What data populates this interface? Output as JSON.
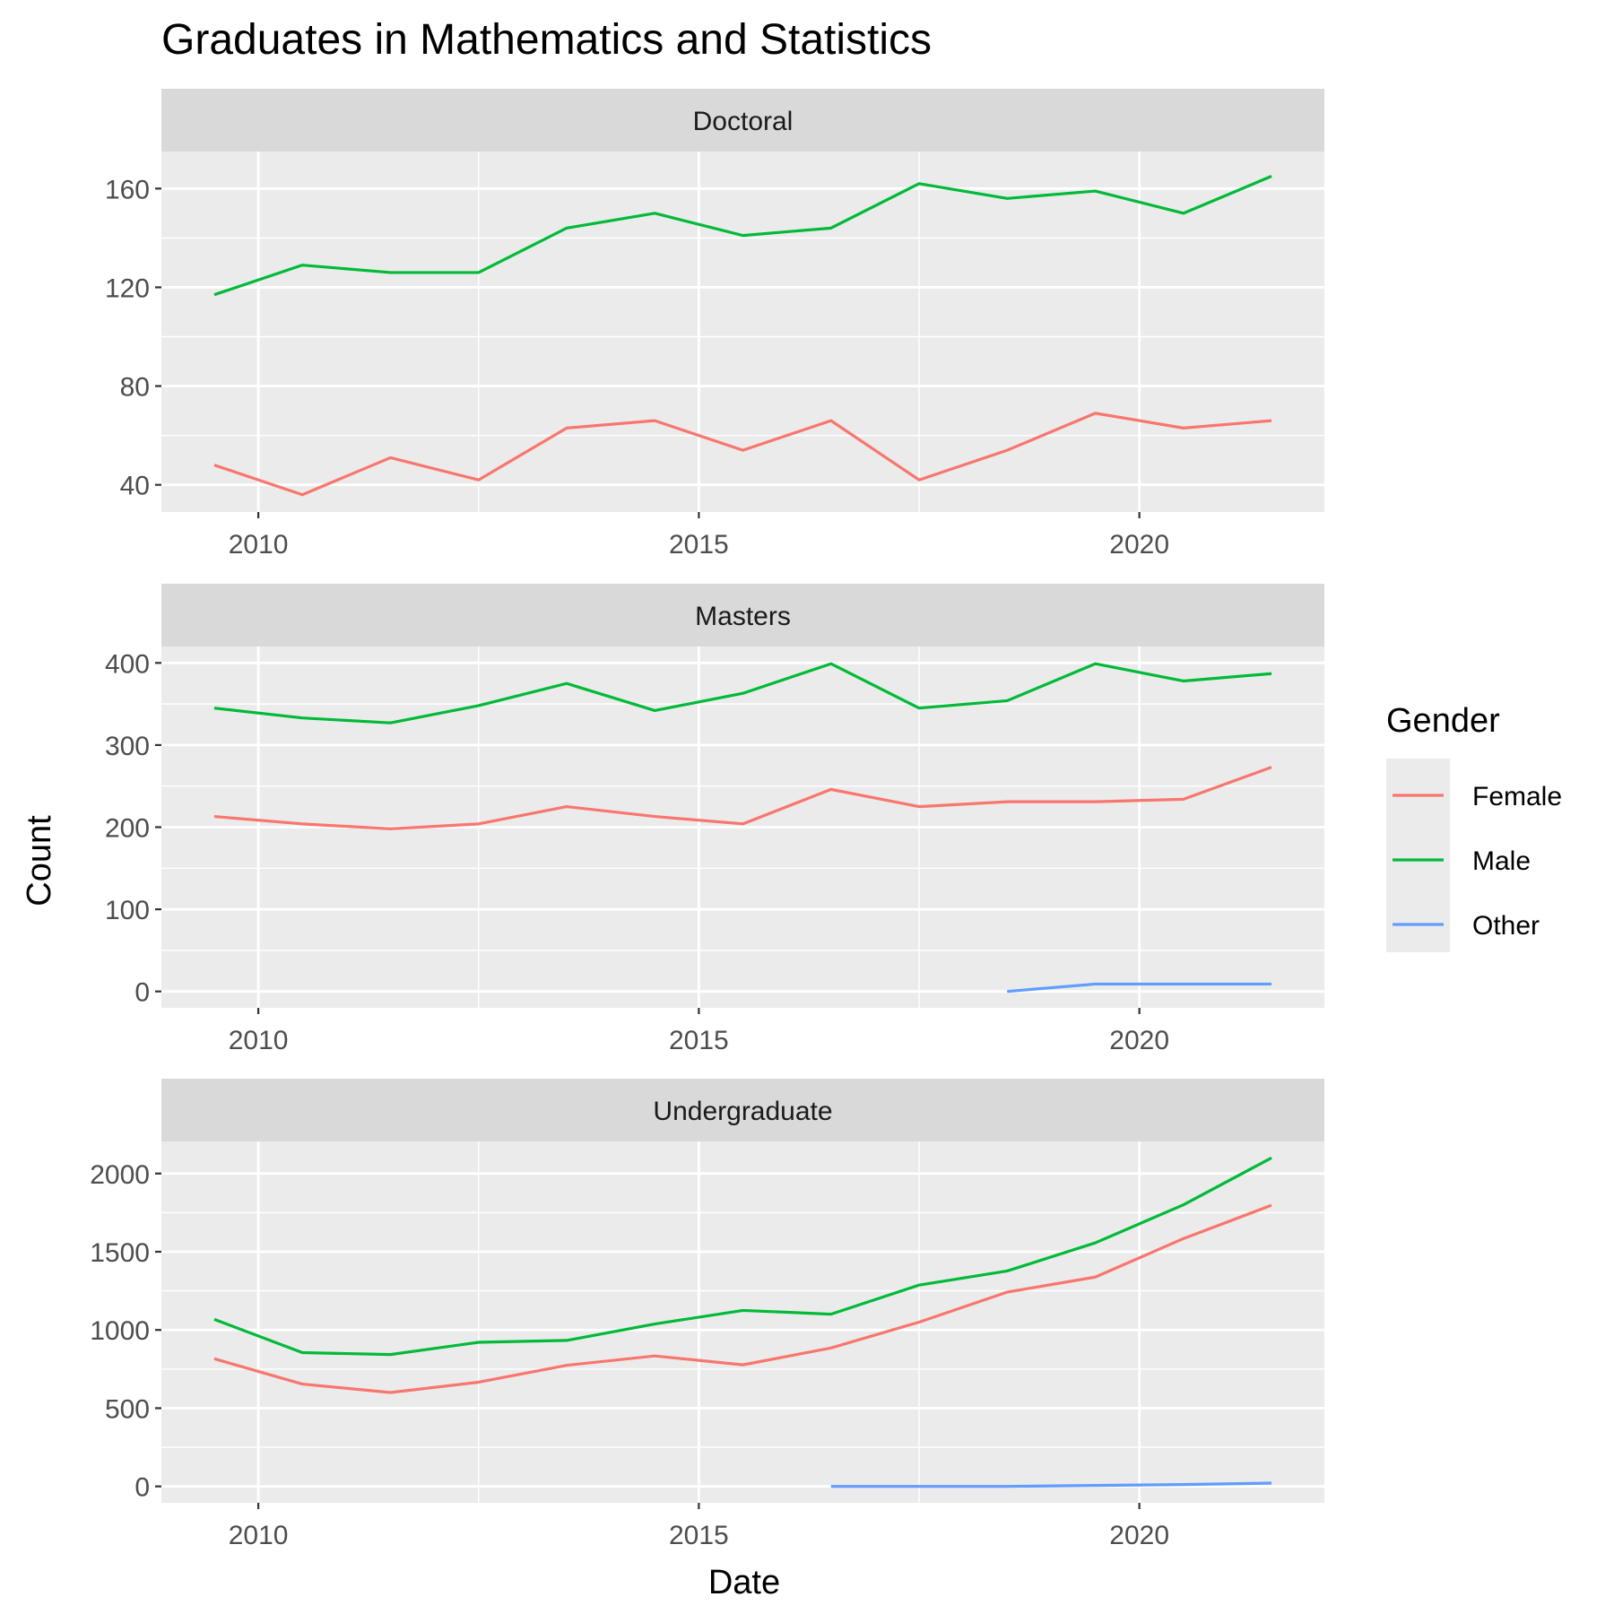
{
  "chart_data": {
    "type": "line",
    "title": "Graduates in Mathematics and Statistics",
    "xlabel": "Date",
    "ylabel": "Count",
    "grid": true,
    "legend": {
      "title": "Gender",
      "placement": "right",
      "entries": [
        {
          "name": "Female",
          "color": "#F8766D"
        },
        {
          "name": "Male",
          "color": "#00BA38"
        },
        {
          "name": "Other",
          "color": "#619CFF"
        }
      ]
    },
    "x_ticks": [
      "2010",
      "2015",
      "2020"
    ],
    "xlim": [
      2008.9,
      2022.1
    ],
    "panels": [
      {
        "label": "Doctoral",
        "ylim": [
          29,
          175
        ],
        "y_ticks": [
          40,
          80,
          120,
          160
        ],
        "series": [
          {
            "name": "Female",
            "x": [
              2009.5,
              2010.5,
              2011.5,
              2012.5,
              2013.5,
              2014.5,
              2015.5,
              2016.5,
              2017.5,
              2018.5,
              2019.5,
              2020.5,
              2021.5
            ],
            "values": [
              48,
              36,
              51,
              42,
              63,
              66,
              54,
              66,
              42,
              54,
              69,
              63,
              66
            ]
          },
          {
            "name": "Male",
            "x": [
              2009.5,
              2010.5,
              2011.5,
              2012.5,
              2013.5,
              2014.5,
              2015.5,
              2016.5,
              2017.5,
              2018.5,
              2019.5,
              2020.5,
              2021.5
            ],
            "values": [
              117,
              129,
              126,
              126,
              144,
              150,
              141,
              144,
              162,
              156,
              159,
              150,
              165
            ]
          }
        ]
      },
      {
        "label": "Masters",
        "ylim": [
          -20,
          420
        ],
        "y_ticks": [
          0,
          100,
          200,
          300,
          400
        ],
        "series": [
          {
            "name": "Female",
            "x": [
              2009.5,
              2010.5,
              2011.5,
              2012.5,
              2013.5,
              2014.5,
              2015.5,
              2016.5,
              2017.5,
              2018.5,
              2019.5,
              2020.5,
              2021.5
            ],
            "values": [
              213,
              204,
              198,
              204,
              225,
              213,
              204,
              246,
              225,
              231,
              231,
              234,
              273
            ]
          },
          {
            "name": "Male",
            "x": [
              2009.5,
              2010.5,
              2011.5,
              2012.5,
              2013.5,
              2014.5,
              2015.5,
              2016.5,
              2017.5,
              2018.5,
              2019.5,
              2020.5,
              2021.5
            ],
            "values": [
              345,
              333,
              327,
              348,
              375,
              342,
              363,
              399,
              345,
              354,
              399,
              378,
              387
            ]
          },
          {
            "name": "Other",
            "x": [
              2018.5,
              2019.5,
              2020.5,
              2021.5
            ],
            "values": [
              0,
              9,
              9,
              9
            ]
          }
        ]
      },
      {
        "label": "Undergraduate",
        "ylim": [
          -105,
          2205
        ],
        "y_ticks": [
          0,
          500,
          1000,
          1500,
          2000
        ],
        "series": [
          {
            "name": "Female",
            "x": [
              2009.5,
              2010.5,
              2011.5,
              2012.5,
              2013.5,
              2014.5,
              2015.5,
              2016.5,
              2017.5,
              2018.5,
              2019.5,
              2020.5,
              2021.5
            ],
            "values": [
              816,
              654,
              600,
              666,
              774,
              834,
              777,
              885,
              1050,
              1242,
              1338,
              1584,
              1797
            ]
          },
          {
            "name": "Male",
            "x": [
              2009.5,
              2010.5,
              2011.5,
              2012.5,
              2013.5,
              2014.5,
              2015.5,
              2016.5,
              2017.5,
              2018.5,
              2019.5,
              2020.5,
              2021.5
            ],
            "values": [
              1068,
              855,
              843,
              921,
              933,
              1038,
              1125,
              1101,
              1287,
              1377,
              1557,
              1800,
              2100
            ]
          },
          {
            "name": "Other",
            "x": [
              2016.5,
              2017.5,
              2018.5,
              2019.5,
              2020.5,
              2021.5
            ],
            "values": [
              0,
              0,
              0,
              6,
              12,
              21
            ]
          }
        ]
      }
    ]
  }
}
